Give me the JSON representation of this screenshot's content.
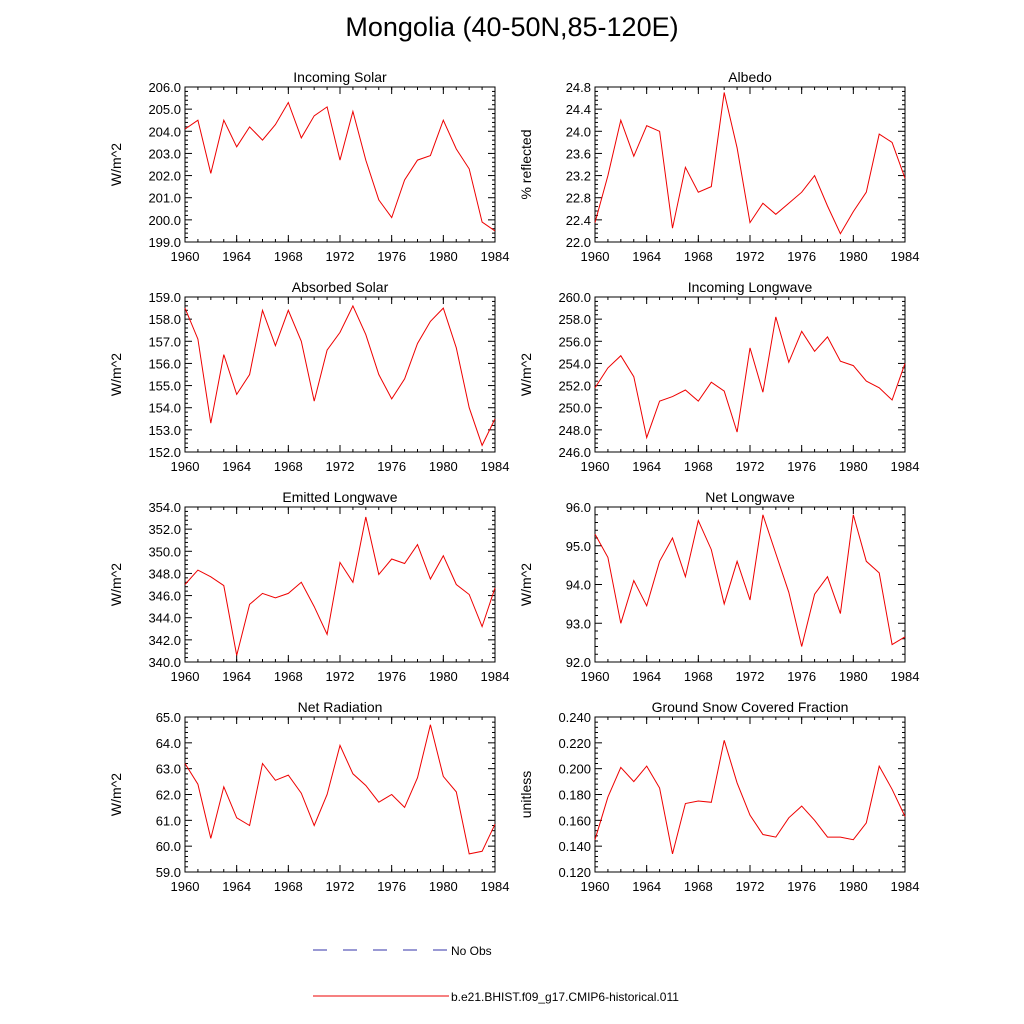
{
  "title": "Mongolia (40-50N,85-120E)",
  "legend": [
    {
      "label": "No Obs",
      "color": "#3333aa",
      "style": "dashed"
    },
    {
      "label": "b.e21.BHIST.f09_g17.CMIP6-historical.011",
      "color": "#ee0000",
      "style": "solid"
    }
  ],
  "chart_data": [
    {
      "type": "line",
      "title": "Incoming Solar",
      "ylabel": "W/m^2",
      "x": [
        1960,
        1961,
        1962,
        1963,
        1964,
        1965,
        1966,
        1967,
        1968,
        1969,
        1970,
        1971,
        1972,
        1973,
        1974,
        1975,
        1976,
        1977,
        1978,
        1979,
        1980,
        1981,
        1982,
        1983,
        1984
      ],
      "xticks": [
        1960,
        1964,
        1968,
        1972,
        1976,
        1980,
        1984
      ],
      "ylim": [
        199.0,
        206.0
      ],
      "yticks": [
        "199.0",
        "200.0",
        "201.0",
        "202.0",
        "203.0",
        "204.0",
        "205.0",
        "206.0"
      ],
      "series": [
        {
          "color": "#ee0000",
          "values": [
            204.1,
            204.5,
            202.1,
            204.5,
            203.3,
            204.2,
            203.6,
            204.3,
            205.3,
            203.7,
            204.7,
            205.1,
            202.7,
            204.9,
            202.7,
            200.9,
            200.1,
            201.8,
            202.7,
            202.9,
            204.5,
            203.2,
            202.3,
            199.9,
            199.5
          ]
        }
      ]
    },
    {
      "type": "line",
      "title": "Albedo",
      "ylabel": "% reflected",
      "x": [
        1960,
        1961,
        1962,
        1963,
        1964,
        1965,
        1966,
        1967,
        1968,
        1969,
        1970,
        1971,
        1972,
        1973,
        1974,
        1975,
        1976,
        1977,
        1978,
        1979,
        1980,
        1981,
        1982,
        1983,
        1984
      ],
      "xticks": [
        1960,
        1964,
        1968,
        1972,
        1976,
        1980,
        1984
      ],
      "ylim": [
        22.0,
        24.8
      ],
      "yticks": [
        "22.0",
        "22.4",
        "22.8",
        "23.2",
        "23.6",
        "24.0",
        "24.4",
        "24.8"
      ],
      "series": [
        {
          "color": "#ee0000",
          "values": [
            22.35,
            23.2,
            24.2,
            23.55,
            24.1,
            24.0,
            22.25,
            23.35,
            22.9,
            23.0,
            24.7,
            23.7,
            22.35,
            22.7,
            22.5,
            22.7,
            22.9,
            23.2,
            22.65,
            22.15,
            22.55,
            22.9,
            23.95,
            23.8,
            23.15
          ]
        }
      ]
    },
    {
      "type": "line",
      "title": "Absorbed Solar",
      "ylabel": "W/m^2",
      "x": [
        1960,
        1961,
        1962,
        1963,
        1964,
        1965,
        1966,
        1967,
        1968,
        1969,
        1970,
        1971,
        1972,
        1973,
        1974,
        1975,
        1976,
        1977,
        1978,
        1979,
        1980,
        1981,
        1982,
        1983,
        1984
      ],
      "xticks": [
        1960,
        1964,
        1968,
        1972,
        1976,
        1980,
        1984
      ],
      "ylim": [
        152.0,
        159.0
      ],
      "yticks": [
        "152.0",
        "153.0",
        "154.0",
        "155.0",
        "156.0",
        "157.0",
        "158.0",
        "159.0"
      ],
      "series": [
        {
          "color": "#ee0000",
          "values": [
            158.5,
            157.1,
            153.3,
            156.4,
            154.6,
            155.5,
            158.4,
            156.8,
            158.4,
            157.0,
            154.3,
            156.6,
            157.4,
            158.6,
            157.3,
            155.5,
            154.4,
            155.3,
            156.9,
            157.9,
            158.5,
            156.7,
            154.0,
            152.3,
            153.5
          ]
        }
      ]
    },
    {
      "type": "line",
      "title": "Incoming Longwave",
      "ylabel": "W/m^2",
      "x": [
        1960,
        1961,
        1962,
        1963,
        1964,
        1965,
        1966,
        1967,
        1968,
        1969,
        1970,
        1971,
        1972,
        1973,
        1974,
        1975,
        1976,
        1977,
        1978,
        1979,
        1980,
        1981,
        1982,
        1983,
        1984
      ],
      "xticks": [
        1960,
        1964,
        1968,
        1972,
        1976,
        1980,
        1984
      ],
      "ylim": [
        246.0,
        260.0
      ],
      "yticks": [
        "246.0",
        "248.0",
        "250.0",
        "252.0",
        "254.0",
        "256.0",
        "258.0",
        "260.0"
      ],
      "series": [
        {
          "color": "#ee0000",
          "values": [
            251.8,
            253.6,
            254.7,
            252.8,
            247.3,
            250.6,
            251.0,
            251.6,
            250.6,
            252.3,
            251.5,
            247.8,
            255.4,
            251.4,
            258.2,
            254.1,
            256.9,
            255.1,
            256.4,
            254.2,
            253.8,
            252.4,
            251.8,
            250.7,
            254.0
          ]
        }
      ]
    },
    {
      "type": "line",
      "title": "Emitted Longwave",
      "ylabel": "W/m^2",
      "x": [
        1960,
        1961,
        1962,
        1963,
        1964,
        1965,
        1966,
        1967,
        1968,
        1969,
        1970,
        1971,
        1972,
        1973,
        1974,
        1975,
        1976,
        1977,
        1978,
        1979,
        1980,
        1981,
        1982,
        1983,
        1984
      ],
      "xticks": [
        1960,
        1964,
        1968,
        1972,
        1976,
        1980,
        1984
      ],
      "ylim": [
        340.0,
        354.0
      ],
      "yticks": [
        "340.0",
        "342.0",
        "344.0",
        "346.0",
        "348.0",
        "350.0",
        "352.0",
        "354.0"
      ],
      "series": [
        {
          "color": "#ee0000",
          "values": [
            347.0,
            348.3,
            347.7,
            346.9,
            340.6,
            345.2,
            346.2,
            345.8,
            346.2,
            347.2,
            345.0,
            342.5,
            349.0,
            347.2,
            353.1,
            347.9,
            349.3,
            348.9,
            350.6,
            347.5,
            349.6,
            347.0,
            346.1,
            343.2,
            346.7
          ]
        }
      ]
    },
    {
      "type": "line",
      "title": "Net Longwave",
      "ylabel": "W/m^2",
      "x": [
        1960,
        1961,
        1962,
        1963,
        1964,
        1965,
        1966,
        1967,
        1968,
        1969,
        1970,
        1971,
        1972,
        1973,
        1974,
        1975,
        1976,
        1977,
        1978,
        1979,
        1980,
        1981,
        1982,
        1983,
        1984
      ],
      "xticks": [
        1960,
        1964,
        1968,
        1972,
        1976,
        1980,
        1984
      ],
      "ylim": [
        92.0,
        96.0
      ],
      "yticks": [
        "92.0",
        "93.0",
        "94.0",
        "95.0",
        "96.0"
      ],
      "series": [
        {
          "color": "#ee0000",
          "values": [
            95.3,
            94.7,
            93.0,
            94.1,
            93.45,
            94.6,
            95.2,
            94.2,
            95.65,
            94.9,
            93.5,
            94.6,
            93.6,
            95.8,
            94.8,
            93.8,
            92.4,
            93.75,
            94.2,
            93.25,
            95.8,
            94.6,
            94.3,
            92.45,
            92.65
          ]
        }
      ]
    },
    {
      "type": "line",
      "title": "Net Radiation",
      "ylabel": "W/m^2",
      "x": [
        1960,
        1961,
        1962,
        1963,
        1964,
        1965,
        1966,
        1967,
        1968,
        1969,
        1970,
        1971,
        1972,
        1973,
        1974,
        1975,
        1976,
        1977,
        1978,
        1979,
        1980,
        1981,
        1982,
        1983,
        1984
      ],
      "xticks": [
        1960,
        1964,
        1968,
        1972,
        1976,
        1980,
        1984
      ],
      "ylim": [
        59.0,
        65.0
      ],
      "yticks": [
        "59.0",
        "60.0",
        "61.0",
        "62.0",
        "63.0",
        "64.0",
        "65.0"
      ],
      "series": [
        {
          "color": "#ee0000",
          "values": [
            63.2,
            62.4,
            60.3,
            62.3,
            61.1,
            60.8,
            63.2,
            62.55,
            62.75,
            62.05,
            60.8,
            62.0,
            63.9,
            62.8,
            62.35,
            61.7,
            62.0,
            61.5,
            62.65,
            64.7,
            62.7,
            62.1,
            59.7,
            59.8,
            60.85
          ]
        }
      ]
    },
    {
      "type": "line",
      "title": "Ground Snow Covered Fraction",
      "ylabel": "unitless",
      "x": [
        1960,
        1961,
        1962,
        1963,
        1964,
        1965,
        1966,
        1967,
        1968,
        1969,
        1970,
        1971,
        1972,
        1973,
        1974,
        1975,
        1976,
        1977,
        1978,
        1979,
        1980,
        1981,
        1982,
        1983,
        1984
      ],
      "xticks": [
        1960,
        1964,
        1968,
        1972,
        1976,
        1980,
        1984
      ],
      "ylim": [
        0.12,
        0.24
      ],
      "yticks": [
        "0.120",
        "0.140",
        "0.160",
        "0.180",
        "0.200",
        "0.220",
        "0.240"
      ],
      "series": [
        {
          "color": "#ee0000",
          "values": [
            0.145,
            0.178,
            0.201,
            0.19,
            0.202,
            0.185,
            0.134,
            0.173,
            0.175,
            0.174,
            0.222,
            0.189,
            0.164,
            0.149,
            0.147,
            0.162,
            0.171,
            0.16,
            0.147,
            0.147,
            0.145,
            0.158,
            0.202,
            0.184,
            0.163
          ]
        }
      ]
    }
  ]
}
